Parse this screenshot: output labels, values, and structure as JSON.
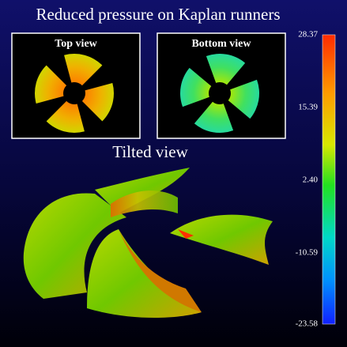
{
  "title": "Reduced pressure on Kaplan runners",
  "panels": [
    {
      "label": "Top view"
    },
    {
      "label": "Bottom view"
    }
  ],
  "tilted_label": "Tilted view",
  "colorbar": {
    "labels": [
      "28.37",
      "15.39",
      "2.40",
      "-10.59",
      "-23.58"
    ]
  }
}
